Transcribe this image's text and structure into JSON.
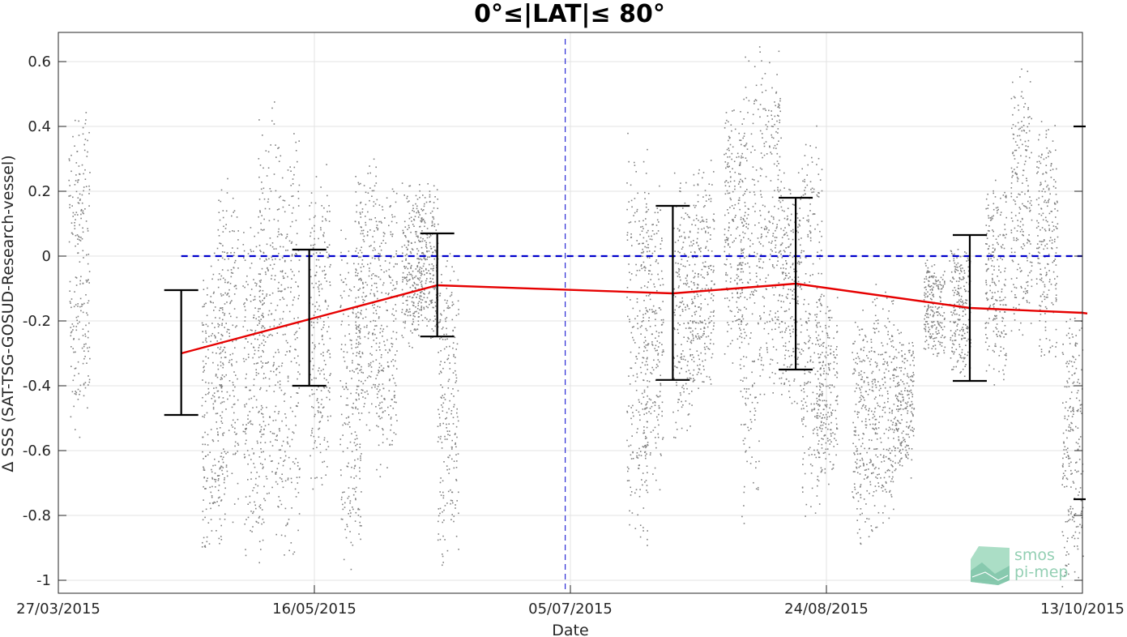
{
  "chart_data": {
    "type": "scatter",
    "title": "0°≤|LAT|≤ 80°",
    "xlabel": "Date",
    "ylabel": "Δ SSS (SAT-TSG-GOSUD-Research-vessel)",
    "xlim": [
      "2015-03-27",
      "2015-10-13"
    ],
    "ylim": [
      -1.04,
      0.69
    ],
    "x_ticks": [
      "27/03/2015",
      "16/05/2015",
      "05/07/2015",
      "24/08/2015",
      "13/10/2015"
    ],
    "y_ticks": [
      "0.6",
      "0.4",
      "0.2",
      "0",
      "-0.2",
      "-0.4",
      "-0.6",
      "-0.8",
      "-1"
    ],
    "grid": true,
    "zero_line": {
      "y": 0,
      "color": "#0000cc",
      "style": "dashed"
    },
    "vertical_marker": {
      "x": "2015-07-04",
      "color": "#0000cc",
      "style": "dashed"
    },
    "right_edge_marks": [
      0.4,
      -0.75
    ],
    "scatter_color": "#808080",
    "mean_line": {
      "color": "#e60000",
      "points": [
        {
          "x": "2015-04-20",
          "y": -0.3
        },
        {
          "x": "2015-06-09",
          "y": -0.09
        },
        {
          "x": "2015-07-25",
          "y": -0.115
        },
        {
          "x": "2015-08-18",
          "y": -0.085
        },
        {
          "x": "2015-09-21",
          "y": -0.16
        },
        {
          "x": "2015-10-13",
          "y": -0.175
        }
      ]
    },
    "error_bars": [
      {
        "x": "2015-04-20",
        "low": -0.49,
        "high": -0.105
      },
      {
        "x": "2015-05-15",
        "low": -0.4,
        "high": 0.02
      },
      {
        "x": "2015-06-09",
        "low": -0.248,
        "high": 0.07
      },
      {
        "x": "2015-07-25",
        "low": -0.382,
        "high": 0.155
      },
      {
        "x": "2015-08-18",
        "low": -0.35,
        "high": 0.18
      },
      {
        "x": "2015-09-21",
        "low": -0.385,
        "high": 0.065
      }
    ],
    "scatter_clusters": [
      {
        "x": "2015-03-31",
        "y0": -0.6,
        "y1": 0.48
      },
      {
        "x": "2015-04-26",
        "y0": -0.98,
        "y1": 0.05
      },
      {
        "x": "2015-04-29",
        "y0": -0.88,
        "y1": 0.3
      },
      {
        "x": "2015-05-04",
        "y0": -0.98,
        "y1": 0.16
      },
      {
        "x": "2015-05-07",
        "y0": -0.92,
        "y1": 0.54
      },
      {
        "x": "2015-05-11",
        "y0": -1.03,
        "y1": 0.45
      },
      {
        "x": "2015-05-17",
        "y0": -0.77,
        "y1": 0.3
      },
      {
        "x": "2015-05-23",
        "y0": -0.98,
        "y1": 0.15
      },
      {
        "x": "2015-05-26",
        "y0": -0.55,
        "y1": 0.35
      },
      {
        "x": "2015-05-30",
        "y0": -0.7,
        "y1": 0.27
      },
      {
        "x": "2015-06-04",
        "y0": -0.3,
        "y1": 0.25
      },
      {
        "x": "2015-06-07",
        "y0": -0.27,
        "y1": 0.24
      },
      {
        "x": "2015-06-11",
        "y0": -0.97,
        "y1": 0.04
      },
      {
        "x": "2015-07-18",
        "y0": -0.95,
        "y1": 0.42
      },
      {
        "x": "2015-07-21",
        "y0": -0.73,
        "y1": 0.25
      },
      {
        "x": "2015-07-27",
        "y0": -0.6,
        "y1": 0.3
      },
      {
        "x": "2015-07-31",
        "y0": -0.45,
        "y1": 0.3
      },
      {
        "x": "2015-08-06",
        "y0": -0.36,
        "y1": 0.49
      },
      {
        "x": "2015-08-09",
        "y0": -0.84,
        "y1": 0.69
      },
      {
        "x": "2015-08-13",
        "y0": -0.45,
        "y1": 0.69
      },
      {
        "x": "2015-08-17",
        "y0": -0.5,
        "y1": 0.27
      },
      {
        "x": "2015-08-21",
        "y0": -0.87,
        "y1": 0.47
      },
      {
        "x": "2015-08-24",
        "y0": -0.72,
        "y1": -0.1
      },
      {
        "x": "2015-08-31",
        "y0": -0.92,
        "y1": -0.12
      },
      {
        "x": "2015-09-04",
        "y0": -0.87,
        "y1": -0.05
      },
      {
        "x": "2015-09-08",
        "y0": -0.7,
        "y1": -0.2
      },
      {
        "x": "2015-09-14",
        "y0": -0.32,
        "y1": 0.0
      },
      {
        "x": "2015-09-19",
        "y0": -0.38,
        "y1": 0.05
      },
      {
        "x": "2015-09-26",
        "y0": -0.4,
        "y1": 0.25
      },
      {
        "x": "2015-10-01",
        "y0": -0.28,
        "y1": 0.62
      },
      {
        "x": "2015-10-06",
        "y0": -0.35,
        "y1": 0.45
      },
      {
        "x": "2015-10-11",
        "y0": -1.02,
        "y1": -0.12
      }
    ]
  },
  "logo": {
    "line1": "smos",
    "line2": "pi-mep"
  }
}
